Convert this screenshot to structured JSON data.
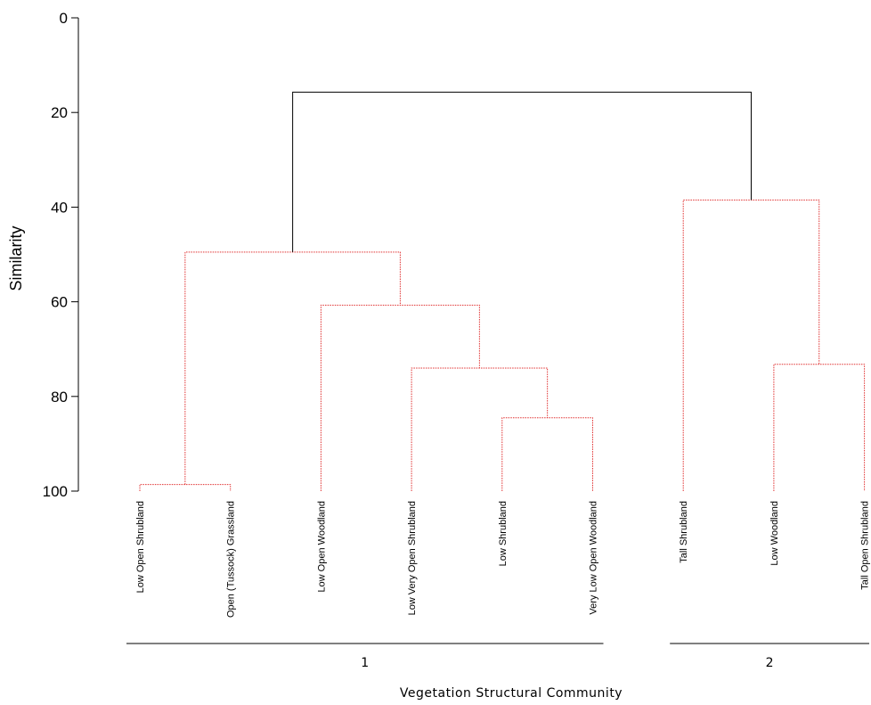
{
  "chart_data": {
    "type": "dendrogram",
    "ylabel": "Similarity",
    "xlabel": "Vegetation Structural Community",
    "ylim": [
      0,
      100
    ],
    "y_inverted": true,
    "yticks": [
      0,
      20,
      40,
      60,
      80,
      100
    ],
    "leaves": [
      "Low Open Shrubland",
      "Open (Tussock) Grassland",
      "Low Open Woodland",
      "Low Very Open Shrubland",
      "Low Shrubland",
      "Very Low Open Woodland",
      "Tall Shrubland",
      "Low Woodland",
      "Tall Open Shrubland"
    ],
    "merges": [
      {
        "left": "L0",
        "right": "L1",
        "similarity": 98.6,
        "color": "#e03030"
      },
      {
        "left": "L4",
        "right": "L5",
        "similarity": 84.5,
        "color": "#e03030"
      },
      {
        "left": "L7",
        "right": "L8",
        "similarity": 73.2,
        "color": "#e03030"
      },
      {
        "left": "L3",
        "right": "M1",
        "similarity": 74.0,
        "color": "#e03030"
      },
      {
        "left": "L2",
        "right": "M3",
        "similarity": 60.7,
        "color": "#e03030"
      },
      {
        "left": "M0",
        "right": "M4",
        "similarity": 49.5,
        "color": "#e03030"
      },
      {
        "left": "L6",
        "right": "M2",
        "similarity": 38.5,
        "color": "#e03030"
      },
      {
        "left": "M5",
        "right": "M6",
        "similarity": 15.7,
        "color": "#000000"
      }
    ],
    "groups": [
      {
        "label": "1",
        "leaf_range": [
          0,
          5
        ]
      },
      {
        "label": "2",
        "leaf_range": [
          6,
          8
        ]
      }
    ]
  }
}
